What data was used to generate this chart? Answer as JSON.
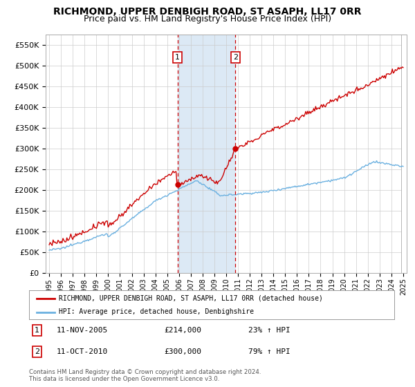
{
  "title": "RICHMOND, UPPER DENBIGH ROAD, ST ASAPH, LL17 0RR",
  "subtitle": "Price paid vs. HM Land Registry's House Price Index (HPI)",
  "ylim": [
    0,
    575000
  ],
  "yticks": [
    0,
    50000,
    100000,
    150000,
    200000,
    250000,
    300000,
    350000,
    400000,
    450000,
    500000,
    550000
  ],
  "ytick_labels": [
    "£0",
    "£50K",
    "£100K",
    "£150K",
    "£200K",
    "£250K",
    "£300K",
    "£350K",
    "£400K",
    "£450K",
    "£500K",
    "£550K"
  ],
  "xtick_years": [
    1995,
    1996,
    1997,
    1998,
    1999,
    2000,
    2001,
    2002,
    2003,
    2004,
    2005,
    2006,
    2007,
    2008,
    2009,
    2010,
    2011,
    2012,
    2013,
    2014,
    2015,
    2016,
    2017,
    2018,
    2019,
    2020,
    2021,
    2022,
    2023,
    2024,
    2025
  ],
  "hpi_color": "#6ab0e0",
  "property_color": "#cc0000",
  "annotation_box_color": "#cc0000",
  "vertical_line_color": "#cc0000",
  "shaded_region_color": "#dce9f5",
  "sale1_year": 2005.87,
  "sale2_year": 2010.79,
  "sale1_price": 214000,
  "sale2_price": 300000,
  "legend_property": "RICHMOND, UPPER DENBIGH ROAD, ST ASAPH, LL17 0RR (detached house)",
  "legend_hpi": "HPI: Average price, detached house, Denbighshire",
  "annotation1_date": "11-NOV-2005",
  "annotation1_price": "£214,000",
  "annotation1_pct": "23% ↑ HPI",
  "annotation2_date": "11-OCT-2010",
  "annotation2_price": "£300,000",
  "annotation2_pct": "79% ↑ HPI",
  "footer": "Contains HM Land Registry data © Crown copyright and database right 2024.\nThis data is licensed under the Open Government Licence v3.0.",
  "background_color": "#ffffff",
  "grid_color": "#cccccc",
  "title_fontsize": 10,
  "subtitle_fontsize": 9
}
